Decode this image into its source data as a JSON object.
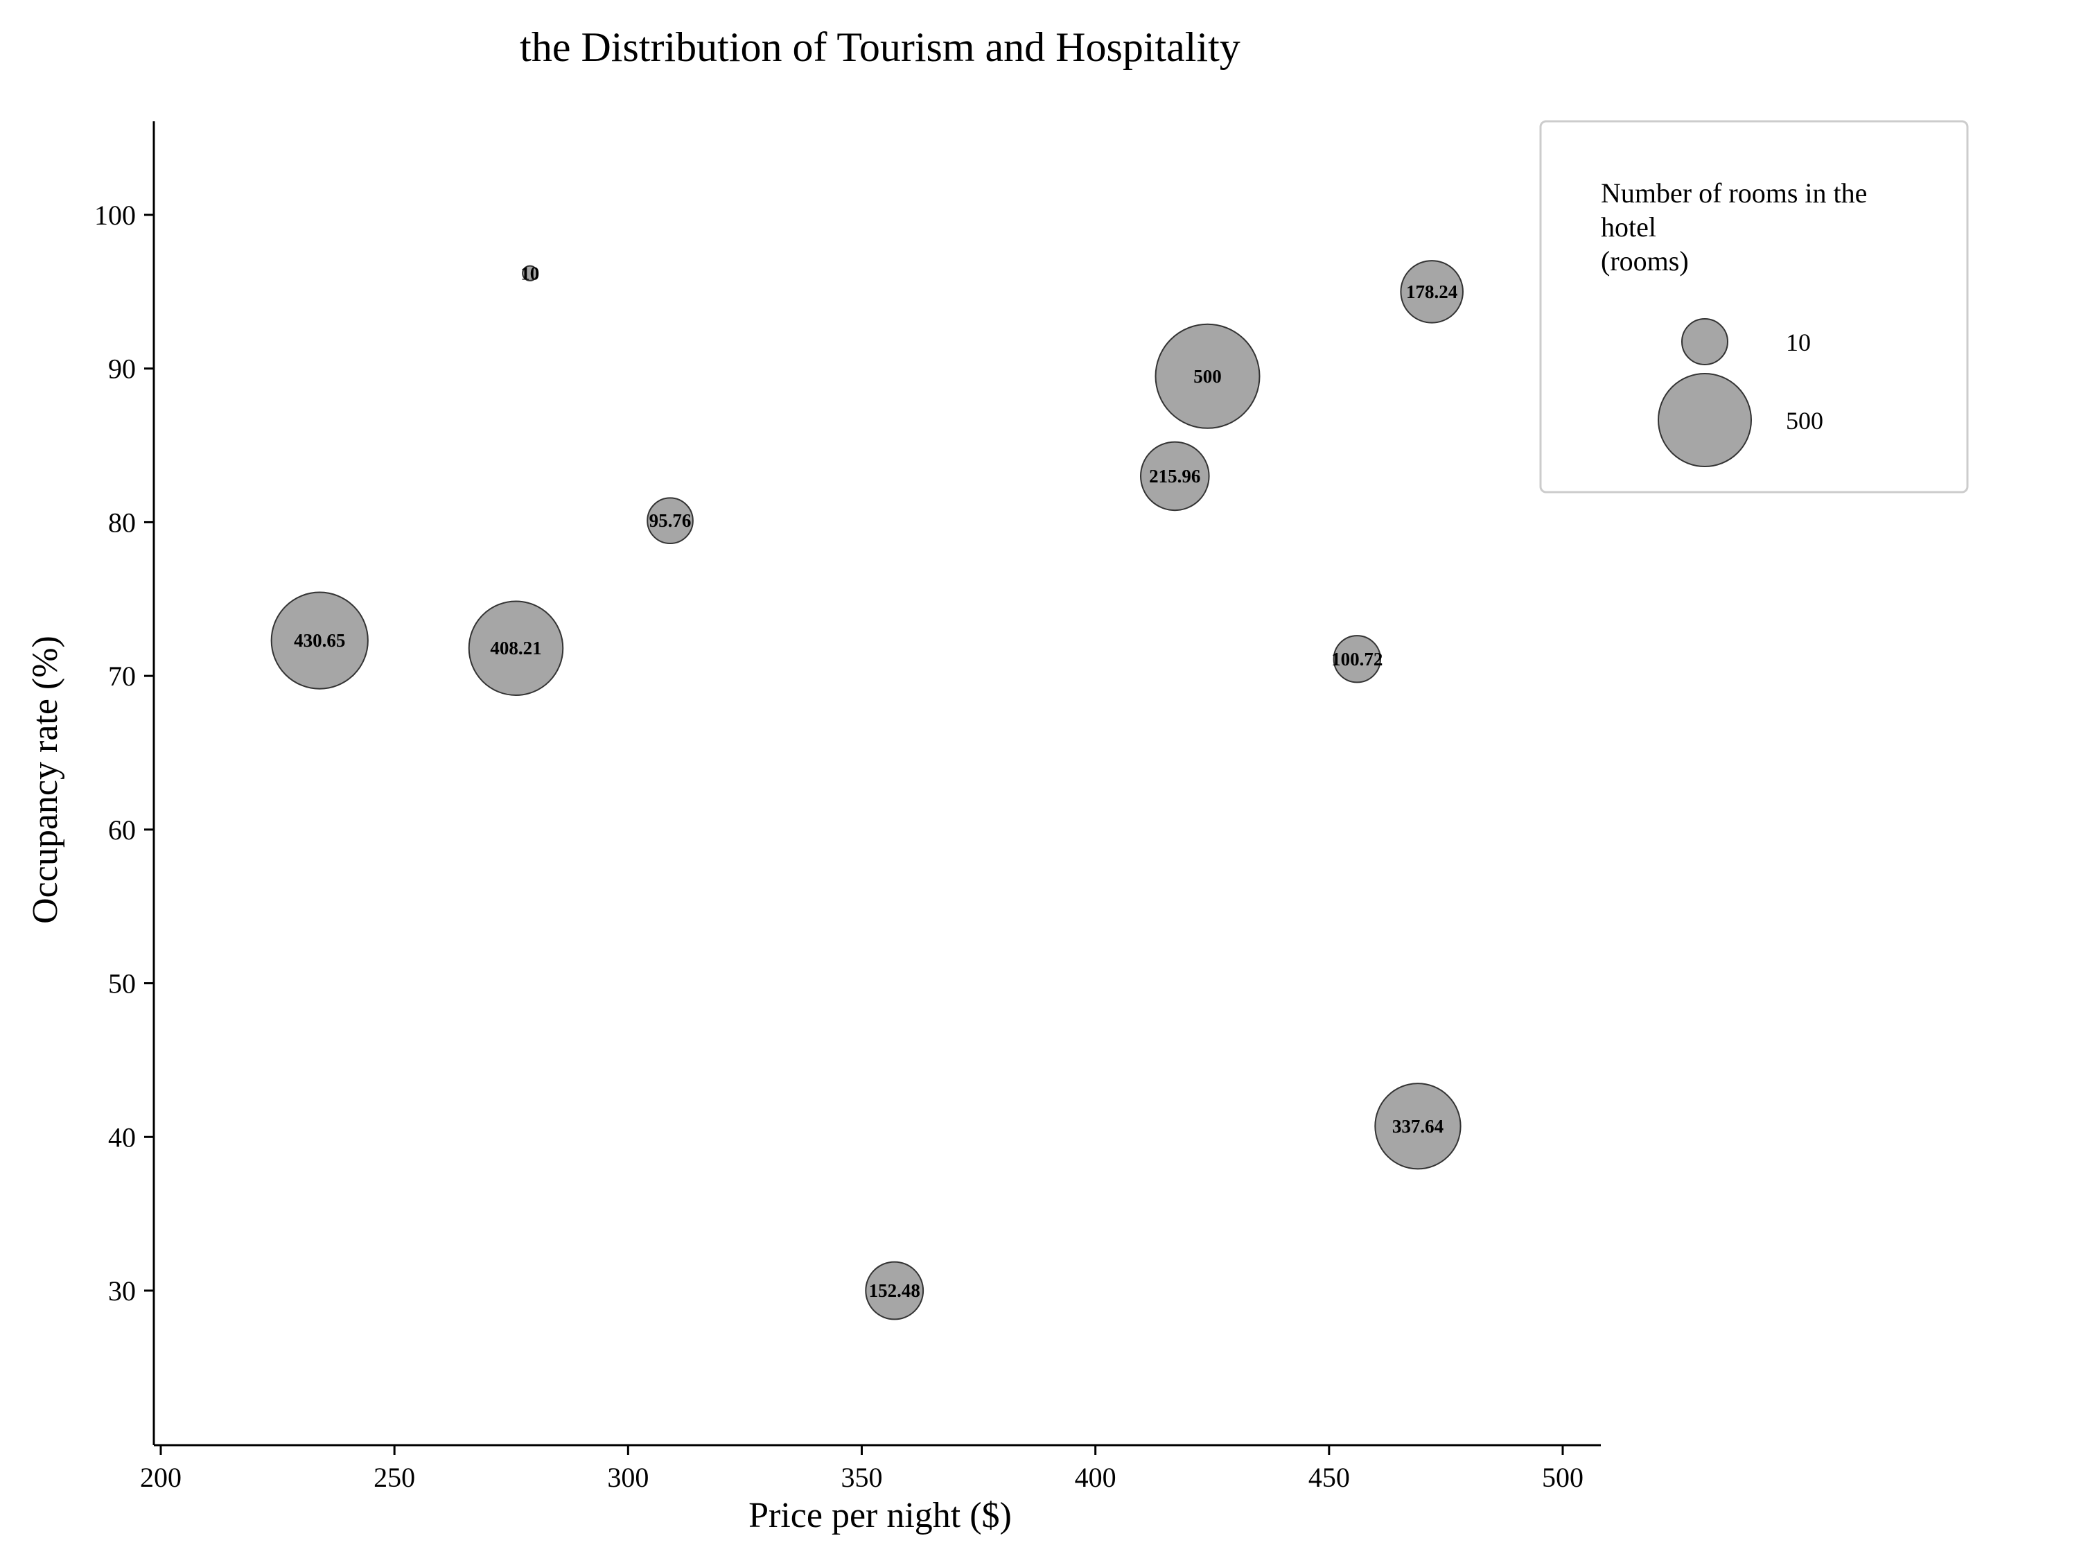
{
  "chart_data": {
    "type": "scatter",
    "title": "the Distribution of Tourism and Hospitality",
    "xlabel": "Price per night ($)",
    "ylabel": "Occupancy rate (%)",
    "xlim": [
      198,
      508
    ],
    "ylim": [
      20,
      106
    ],
    "xticks": [
      200,
      250,
      300,
      350,
      400,
      450,
      500
    ],
    "yticks": [
      30,
      40,
      50,
      60,
      70,
      80,
      90,
      100
    ],
    "grid": false,
    "bubble_color": "#a6a6a6",
    "bubble_edge_color": "#333333",
    "points": [
      {
        "x": 279,
        "y": 96.2,
        "size": 10,
        "label": "10"
      },
      {
        "x": 472,
        "y": 95.0,
        "size": 178.24,
        "label": "178.24"
      },
      {
        "x": 424,
        "y": 89.5,
        "size": 500,
        "label": "500"
      },
      {
        "x": 417,
        "y": 83.0,
        "size": 215.96,
        "label": "215.96"
      },
      {
        "x": 309,
        "y": 80.1,
        "size": 95.76,
        "label": "95.76"
      },
      {
        "x": 234,
        "y": 72.3,
        "size": 430.65,
        "label": "430.65"
      },
      {
        "x": 276,
        "y": 71.8,
        "size": 408.21,
        "label": "408.21"
      },
      {
        "x": 456,
        "y": 71.1,
        "size": 100.72,
        "label": "100.72"
      },
      {
        "x": 469,
        "y": 40.7,
        "size": 337.64,
        "label": "337.64"
      },
      {
        "x": 357,
        "y": 30.0,
        "size": 152.48,
        "label": "152.48"
      }
    ],
    "legend": {
      "title": "Number of rooms in the\nhotel\n(rooms)",
      "placement": "top-right",
      "entries": [
        {
          "size": 10,
          "label": "10"
        },
        {
          "size": 500,
          "label": "500"
        }
      ]
    }
  }
}
